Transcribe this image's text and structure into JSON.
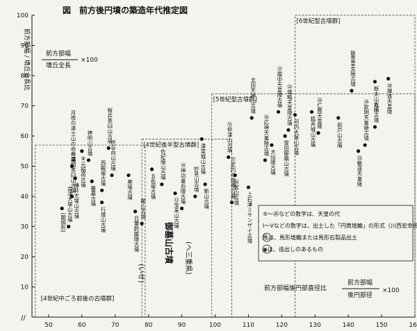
{
  "chart_data": {
    "type": "scatter",
    "title": "図　前方後円墳の築造年代推定図",
    "ylabel": "前方部幅 / 墳丘全長比",
    "y_formula": {
      "numerator": "前方部幅",
      "denominator": "墳丘全長",
      "suffix": "×100"
    },
    "xlabel": "前方部幅後円部直径比",
    "x_formula": {
      "numerator": "前方部幅",
      "denominator": "後円部径",
      "suffix": "×100"
    },
    "xlim": [
      45,
      160
    ],
    "ylim": [
      0,
      100
    ],
    "x_ticks": [
      "50",
      "60",
      "70",
      "80",
      "90",
      "100",
      "110",
      "120",
      "130",
      "140",
      "150",
      "160"
    ],
    "y_ticks": [
      "10",
      "20",
      "30",
      "40",
      "50",
      "60",
      "70",
      "80",
      "90",
      "100"
    ],
    "group_regions": [
      {
        "label": "[4世紀中ごろ前後の古墳群]",
        "x": [
          46,
          79
        ],
        "y": [
          0,
          57
        ]
      },
      {
        "label": "[4世紀後半型古墳群]",
        "x": [
          78,
          105
        ],
        "y": [
          0,
          59
        ]
      },
      {
        "label": "[5世紀型古墳群]",
        "x": [
          99,
          160
        ],
        "y": [
          0,
          74
        ]
      },
      {
        "label": "[6世紀型古墳群]",
        "x": [
          124,
          160
        ],
        "y": [
          0,
          100
        ]
      }
    ],
    "points": [
      {
        "label": "会津大塚山古墳",
        "x": 56,
        "y": 30
      },
      {
        "label": "(朝顔形)",
        "x": 54,
        "y": 36
      },
      {
        "label": "⑩浦間茶臼山古墳",
        "x": 57,
        "y": 40
      },
      {
        "label": "椿井大塚山古墳",
        "x": 58,
        "y": 46
      },
      {
        "label": "月夜の道士山の命の墓",
        "x": 57,
        "y": 50
      },
      {
        "label": "⑧元稲荷古墳",
        "x": 60,
        "y": 55
      },
      {
        "label": "神明山古墳",
        "x": 62,
        "y": 52
      },
      {
        "label": "箸墓古墳",
        "x": 63,
        "y": 45
      },
      {
        "label": "西殿塚古墳",
        "x": 66,
        "y": 42
      },
      {
        "label": "行燈山古墳",
        "x": 66,
        "y": 38
      },
      {
        "label": "渋谷向山古墳",
        "x": 69,
        "y": 47
      },
      {
        "label": "黒塚古墳",
        "x": 74,
        "y": 47
      },
      {
        "label": "桜井茶臼山古墳",
        "x": 68,
        "y": 56
      },
      {
        "label": "日葉酢媛陵古墳",
        "x": 76,
        "y": 35
      },
      {
        "label": "櫛山古墳",
        "x": 78,
        "y": 31
      },
      {
        "label": "五色塚古墳",
        "x": 81,
        "y": 49
      },
      {
        "label": "佐紀陵山古墳",
        "x": 84,
        "y": 44
      },
      {
        "label": "⑬宝来山古墳",
        "x": 88,
        "y": 41
      },
      {
        "label": "⑭神功皇后陵古墳",
        "x": 90,
        "y": 36
      },
      {
        "label": "津堂城山古墳",
        "x": 96,
        "y": 59
      },
      {
        "label": "妙見山古墳",
        "x": 94,
        "y": 40
      },
      {
        "label": "新山古墳",
        "x": 97,
        "y": 44
      },
      {
        "label": "⑮仲津山古墳",
        "x": 104,
        "y": 53
      },
      {
        "label": "⑯宮山古墳",
        "x": 106,
        "y": 47
      },
      {
        "label": "⑰武内の宿禰の墓",
        "x": 105,
        "y": 38
      },
      {
        "label": "上石津ミサンザイ古墳",
        "x": 110,
        "y": 43
      },
      {
        "label": "⑱応神天皇陵古墳",
        "x": 115,
        "y": 52
      },
      {
        "label": "大仙陵古墳",
        "x": 117,
        "y": 57
      },
      {
        "label": "太田天神山古墳",
        "x": 111,
        "y": 66
      },
      {
        "label": "誉田御廟山古墳",
        "x": 121,
        "y": 60
      },
      {
        "label": "㉑履中天皇陵古墳",
        "x": 119,
        "y": 68
      },
      {
        "label": "河内大塚山古墳",
        "x": 124,
        "y": 67
      },
      {
        "label": "㉒雄略天皇陵古墳",
        "x": 122,
        "y": 62
      },
      {
        "label": "狐井城山古墳",
        "x": 129,
        "y": 68
      },
      {
        "label": "㉓仁賢天皇陵",
        "x": 131,
        "y": 61
      },
      {
        "label": "岩戸山古墳",
        "x": 137,
        "y": 66
      },
      {
        "label": "飯豊皇女陵古墳",
        "x": 141,
        "y": 75
      },
      {
        "label": "断夫山古墳",
        "x": 148,
        "y": 78
      },
      {
        "label": "㉔欽明天皇陵古墳",
        "x": 145,
        "y": 57
      },
      {
        "label": "㉕敏達天皇陵",
        "x": 143,
        "y": 55
      },
      {
        "label": "丸山古墳",
        "x": 148,
        "y": 63
      },
      {
        "label": "㉖継体天皇陵",
        "x": 152,
        "y": 79
      }
    ],
    "legend": [
      "⑨〜㉖などの数字は、天皇の代",
      "Ⅰ〜Ⅴなどの数字は、出土した「円筒埴輪」の形式（川西宏幸氏編年）",
      "馬は、馬形埴輪または馬形石製品出土",
      "◉は、造出しのあるもの"
    ],
    "legend_symbols": [
      "",
      "",
      "馬",
      "◉"
    ],
    "legend_position": "bottom-right",
    "annotations": [
      "(へ三重県)",
      "御墓山古墳",
      "(いせ)"
    ]
  }
}
